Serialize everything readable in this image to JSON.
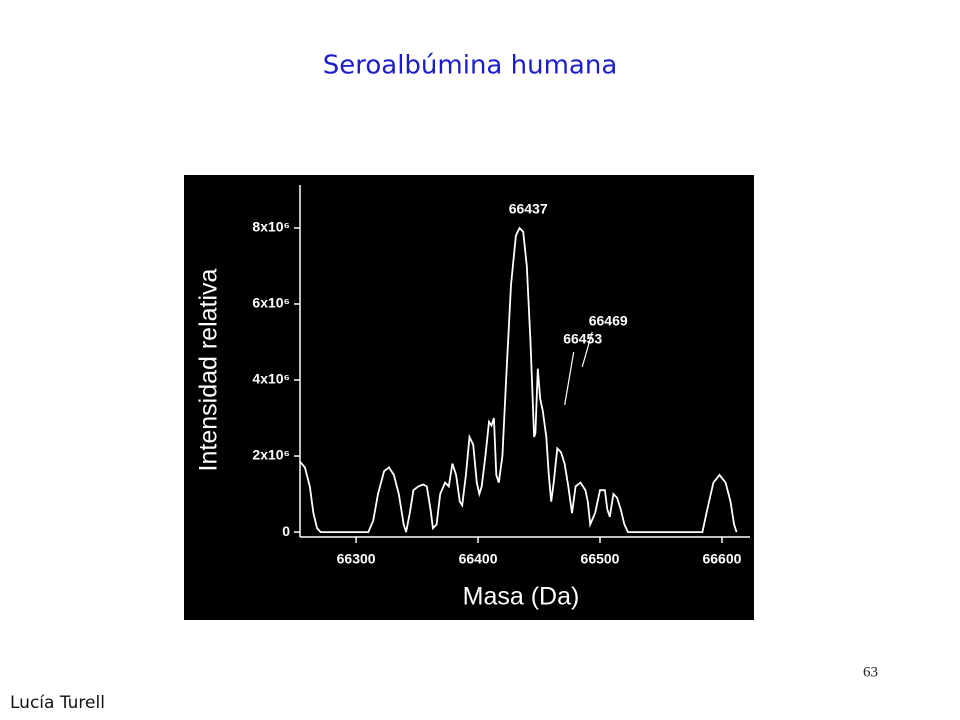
{
  "title": "Seroalbúmina humana",
  "page_number": 63,
  "author": "Lucía Turell",
  "chart_data": {
    "type": "line",
    "x_label": "Masa (Da)",
    "y_label": "Intensidad relativa",
    "x": [
      66254,
      66258,
      66262,
      66265,
      66268,
      66271,
      66310,
      66314,
      66318,
      66323,
      66327,
      66331,
      66335,
      66339,
      66341,
      66344,
      66347,
      66351,
      66355,
      66358,
      66361,
      66363,
      66366,
      66369,
      66373,
      66376,
      66379,
      66382,
      66385,
      66387,
      66390,
      66393,
      66396,
      66399,
      66401,
      66403,
      66406,
      66409,
      66411,
      66413,
      66415,
      66417,
      66420,
      66423,
      66427,
      66431,
      66434,
      66437,
      66440,
      66443,
      66446,
      66447,
      66449,
      66451,
      66453,
      66456,
      66458,
      66460,
      66462,
      66465,
      66468,
      66471,
      66474,
      66477,
      66480,
      66484,
      66488,
      66490,
      66492,
      66496,
      66500,
      66504,
      66506,
      66508,
      66511,
      66514,
      66517,
      66520,
      66523,
      66584,
      66588,
      66593,
      66598,
      66603,
      66607,
      66610,
      66612
    ],
    "series": [
      {
        "color": "#ffffff",
        "values": [
          1850000,
          1700000,
          1200000,
          500000,
          100000,
          0,
          0,
          300000,
          1000000,
          1600000,
          1700000,
          1500000,
          1000000,
          200000,
          0,
          500000,
          1100000,
          1200000,
          1250000,
          1200000,
          600000,
          100000,
          200000,
          1000000,
          1300000,
          1200000,
          1800000,
          1500000,
          800000,
          700000,
          1500000,
          2500000,
          2300000,
          1300000,
          1000000,
          1200000,
          2000000,
          2900000,
          2800000,
          3000000,
          1500000,
          1300000,
          2000000,
          4000000,
          6500000,
          7800000,
          8000000,
          7900000,
          7000000,
          5000000,
          2500000,
          2600000,
          4300000,
          3500000,
          3200000,
          2500000,
          1500000,
          800000,
          1300000,
          2200000,
          2100000,
          1800000,
          1200000,
          500000,
          1200000,
          1300000,
          1100000,
          800000,
          200000,
          500000,
          1100000,
          1100000,
          600000,
          400000,
          1000000,
          900000,
          600000,
          200000,
          0,
          0,
          600000,
          1300000,
          1500000,
          1300000,
          800000,
          200000,
          0
        ]
      }
    ],
    "peak_labels": [
      66437,
      66453,
      66469
    ],
    "xlim": [
      66254,
      66623
    ],
    "ylim": [
      -130000,
      9130000
    ],
    "xticks": [
      66300,
      66400,
      66500,
      66600
    ],
    "yticks": [
      0,
      {
        "value": 2000000,
        "label": "2x10⁶"
      },
      {
        "value": 4000000,
        "label": "4x10⁶"
      },
      {
        "value": 6000000,
        "label": "6x10⁶"
      },
      {
        "value": 8000000,
        "label": "8x10⁶"
      }
    ],
    "background": "#000000",
    "axis_color": "#ffffff"
  }
}
